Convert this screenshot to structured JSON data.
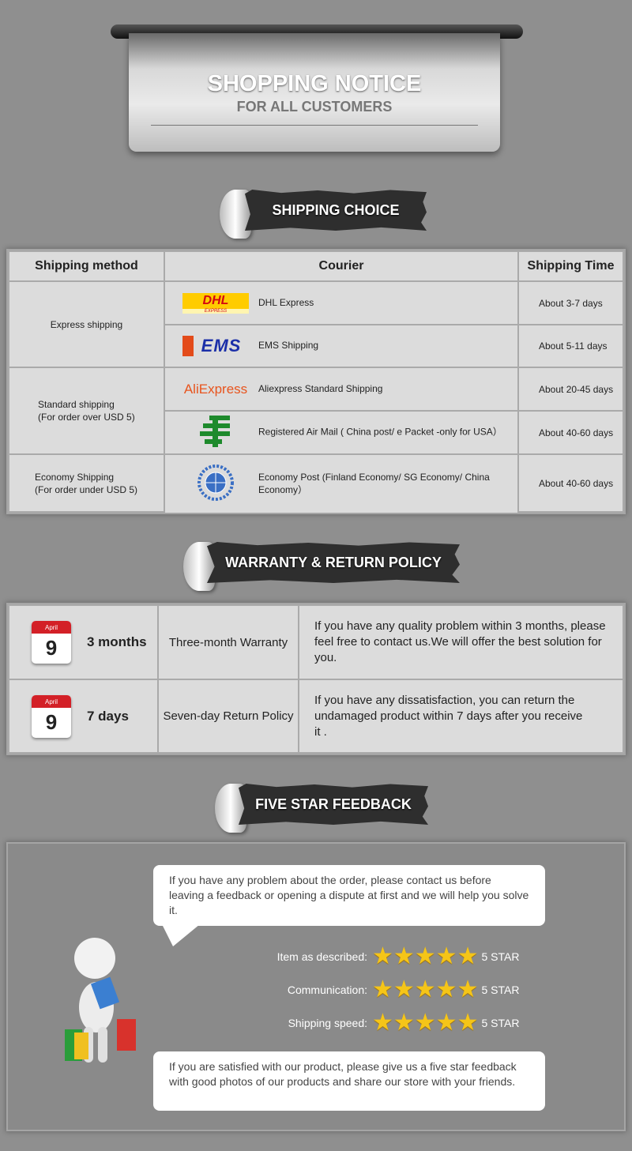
{
  "header": {
    "title": "SHOPPING NOTICE",
    "subtitle": "FOR ALL CUSTOMERS"
  },
  "sections": {
    "shipping": "SHIPPING CHOICE",
    "warranty": "WARRANTY & RETURN POLICY",
    "feedback": "FIVE STAR FEEDBACK"
  },
  "shipping_table": {
    "headers": [
      "Shipping method",
      "Courier",
      "Shipping Time"
    ],
    "methods": [
      "Express shipping",
      "Standard shipping\n(For order over USD 5)",
      "Economy Shipping\n(For order under USD 5)"
    ],
    "couriers": [
      {
        "logo": "DHL",
        "logo_sub": "EXPRESS",
        "name": "DHL Express",
        "time": "About 3-7 days"
      },
      {
        "logo": "EMS",
        "name": "EMS Shipping",
        "time": "About 5-11 days"
      },
      {
        "logo": "AliExpress",
        "name": "Aliexpress Standard Shipping",
        "time": "About 20-45 days"
      },
      {
        "logo": "china-post-icon",
        "name": "Registered Air Mail ( China post/ e Packet -only for USA）",
        "time": "About 40-60 days"
      },
      {
        "logo": "un-emblem-icon",
        "name": "Economy Post (Finland Economy/ SG Economy/ China Economy）",
        "time": "About 40-60 days"
      }
    ]
  },
  "warranty_table": [
    {
      "cal_month": "April",
      "cal_day": "9",
      "period": "3 months",
      "policy": "Three-month Warranty",
      "desc": "If you have any quality problem within 3 months, please feel free to contact us.We will offer the best solution for you."
    },
    {
      "cal_month": "April",
      "cal_day": "9",
      "period": "7 days",
      "policy": "Seven-day Return Policy",
      "desc": "If you have any dissatisfaction, you can return the undamaged product within 7 days after you receive it ."
    }
  ],
  "feedback": {
    "bubble_top": "If you have any problem about the order, please contact us before leaving a feedback or opening a dispute at first and we will help you solve it.",
    "ratings": [
      {
        "label": "Item as described:",
        "stars": 5,
        "value": "5 STAR"
      },
      {
        "label": "Communication:",
        "stars": 5,
        "value": "5 STAR"
      },
      {
        "label": "Shipping speed:",
        "stars": 5,
        "value": "5 STAR"
      }
    ],
    "bubble_bottom": "If you are satisfied with our product, please give us a five star feedback with good photos of our products and share our store with your friends."
  },
  "colors": {
    "accent_red": "#d32027",
    "star": "#f5c518",
    "background": "#8f8f8f"
  }
}
